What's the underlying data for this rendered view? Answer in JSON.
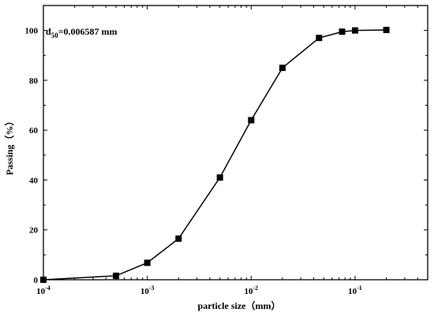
{
  "chart_data": {
    "type": "line",
    "xlabel": "particle size（mm）",
    "ylabel": "Passing（%）",
    "xscale": "log",
    "xlim": [
      0.0001,
      0.5
    ],
    "ylim": [
      0,
      110
    ],
    "grid": false,
    "annotation": {
      "base": "d",
      "sub": "50",
      "rest": "=0.006587 mm"
    },
    "x_ticks": [
      {
        "base": "10",
        "exp": "-4",
        "value": 0.0001
      },
      {
        "base": "10",
        "exp": "-3",
        "value": 0.001
      },
      {
        "base": "10",
        "exp": "-2",
        "value": 0.01
      },
      {
        "base": "10",
        "exp": "-1",
        "value": 0.1
      }
    ],
    "y_ticks": [
      0,
      20,
      40,
      60,
      80,
      100
    ],
    "series": [
      {
        "x": [
          0.0001,
          0.0005,
          0.001,
          0.002,
          0.005,
          0.01,
          0.02,
          0.045,
          0.075,
          0.1,
          0.2
        ],
        "y": [
          0,
          1.6,
          6.8,
          16.5,
          41,
          64,
          85,
          97,
          99.5,
          100,
          100.2
        ]
      }
    ]
  }
}
